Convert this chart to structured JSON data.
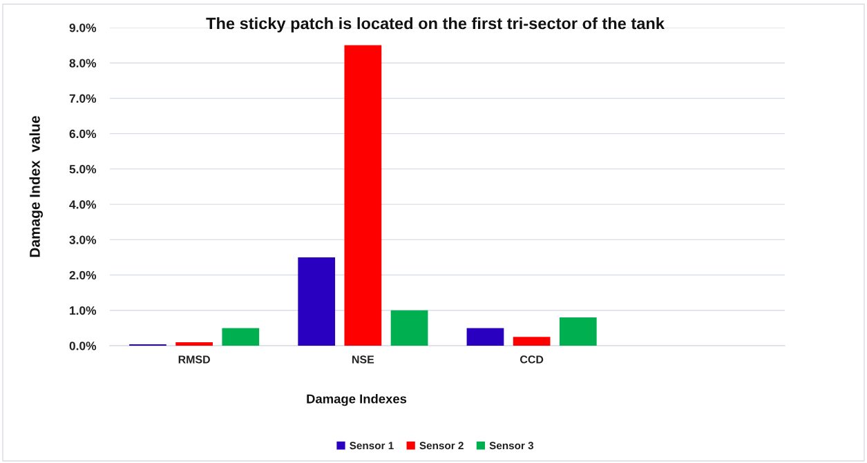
{
  "chart_data": {
    "type": "bar",
    "title": "The sticky patch is located on the first tri-sector of the tank",
    "xlabel": "Damage Indexes",
    "ylabel": "Damage Index  value",
    "categories": [
      "RMSD",
      "NSE",
      "CCD",
      null
    ],
    "series": [
      {
        "name": "Sensor 1",
        "color": "#2a00c0",
        "values": [
          0.04,
          2.5,
          0.5,
          null
        ]
      },
      {
        "name": "Sensor 2",
        "color": "#ff0000",
        "values": [
          0.1,
          8.5,
          0.25,
          null
        ]
      },
      {
        "name": "Sensor 3",
        "color": "#00b050",
        "values": [
          0.5,
          1.0,
          0.8,
          null
        ]
      }
    ],
    "ylim": [
      0,
      9
    ],
    "yticks": [
      {
        "value": 0,
        "label": "0.0%"
      },
      {
        "value": 1,
        "label": "1.0%"
      },
      {
        "value": 2,
        "label": "2.0%"
      },
      {
        "value": 3,
        "label": "3.0%"
      },
      {
        "value": 4,
        "label": "4.0%"
      },
      {
        "value": 5,
        "label": "5.0%"
      },
      {
        "value": 6,
        "label": "6.0%"
      },
      {
        "value": 7,
        "label": "7.0%"
      },
      {
        "value": 8,
        "label": "8.0%"
      },
      {
        "value": 9,
        "label": "9.0%"
      }
    ],
    "grid": "y",
    "legend": "bottom"
  }
}
